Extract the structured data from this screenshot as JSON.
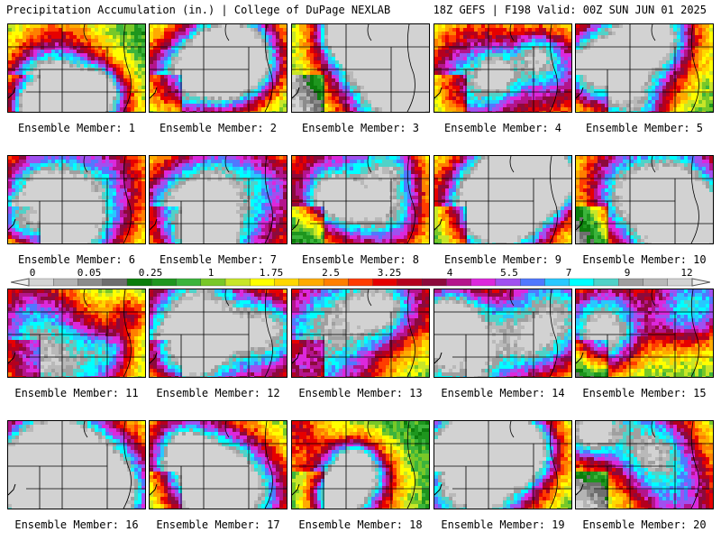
{
  "header": {
    "title": "Precipitation Accumulation (in.) | College of DuPage NEXLAB",
    "run_info": "18Z GEFS | F198 Valid: 00Z SUN JUN 01 2025"
  },
  "colorbar": {
    "tick_labels": [
      "0",
      "0.05",
      "0.25",
      "1",
      "1.75",
      "2.5",
      "3.25",
      "4",
      "5.5",
      "7",
      "9",
      "12"
    ],
    "colors": [
      "#d4d4d4",
      "#b4b4b4",
      "#8c8c8c",
      "#6e6e6e",
      "#0c7d0c",
      "#1e961e",
      "#3cb43c",
      "#78c828",
      "#c8e628",
      "#ffff00",
      "#ffd700",
      "#ffaa00",
      "#ff7f00",
      "#ff3c00",
      "#e60000",
      "#b4001e",
      "#8c0a3c",
      "#b4148c",
      "#dc28dc",
      "#a050f0",
      "#5078ff",
      "#28c8ff",
      "#00ffff",
      "#50d2c8",
      "#a0a0a0",
      "#b9b9b9",
      "#d2d2d2"
    ]
  },
  "members": [
    {
      "label": "Ensemble Member: 1",
      "intensity": 0.75
    },
    {
      "label": "Ensemble Member: 2",
      "intensity": 0.65
    },
    {
      "label": "Ensemble Member: 3",
      "intensity": 0.7
    },
    {
      "label": "Ensemble Member: 4",
      "intensity": 0.45
    },
    {
      "label": "Ensemble Member: 5",
      "intensity": 0.7
    },
    {
      "label": "Ensemble Member: 6",
      "intensity": 0.75
    },
    {
      "label": "Ensemble Member: 7",
      "intensity": 0.7
    },
    {
      "label": "Ensemble Member: 8",
      "intensity": 0.6
    },
    {
      "label": "Ensemble Member: 9",
      "intensity": 0.85
    },
    {
      "label": "Ensemble Member: 10",
      "intensity": 0.75
    },
    {
      "label": "Ensemble Member: 11",
      "intensity": 0.6
    },
    {
      "label": "Ensemble Member: 12",
      "intensity": 0.8
    },
    {
      "label": "Ensemble Member: 13",
      "intensity": 0.75
    },
    {
      "label": "Ensemble Member: 14",
      "intensity": 0.6
    },
    {
      "label": "Ensemble Member: 15",
      "intensity": 0.4
    },
    {
      "label": "Ensemble Member: 16",
      "intensity": 0.75
    },
    {
      "label": "Ensemble Member: 17",
      "intensity": 0.55
    },
    {
      "label": "Ensemble Member: 18",
      "intensity": 0.8
    },
    {
      "label": "Ensemble Member: 19",
      "intensity": 0.65
    },
    {
      "label": "Ensemble Member: 20",
      "intensity": 0.55
    }
  ]
}
